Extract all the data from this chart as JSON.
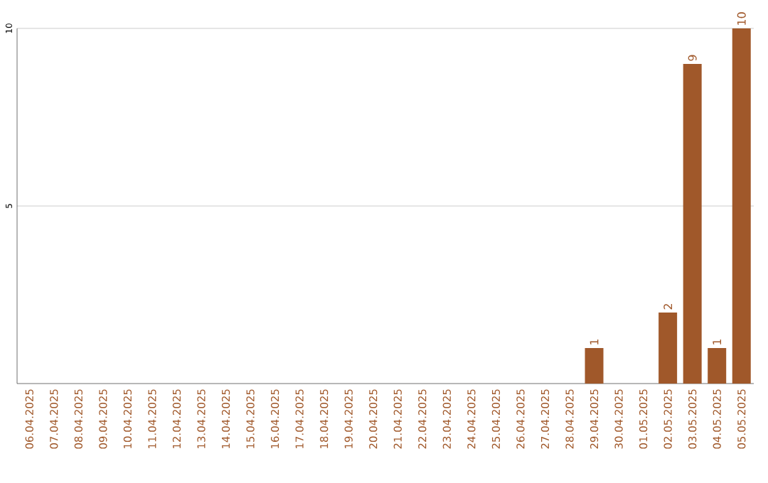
{
  "chart_data": {
    "type": "bar",
    "categories": [
      "06.04.2025",
      "07.04.2025",
      "08.04.2025",
      "09.04.2025",
      "10.04.2025",
      "11.04.2025",
      "12.04.2025",
      "13.04.2025",
      "14.04.2025",
      "15.04.2025",
      "16.04.2025",
      "17.04.2025",
      "18.04.2025",
      "19.04.2025",
      "20.04.2025",
      "21.04.2025",
      "22.04.2025",
      "23.04.2025",
      "24.04.2025",
      "25.04.2025",
      "26.04.2025",
      "27.04.2025",
      "28.04.2025",
      "29.04.2025",
      "30.04.2025",
      "01.05.2025",
      "02.05.2025",
      "03.05.2025",
      "04.05.2025",
      "05.05.2025"
    ],
    "values": [
      0,
      0,
      0,
      0,
      0,
      0,
      0,
      0,
      0,
      0,
      0,
      0,
      0,
      0,
      0,
      0,
      0,
      0,
      0,
      0,
      0,
      0,
      0,
      1,
      0,
      0,
      2,
      9,
      1,
      10
    ],
    "value_labels": [
      null,
      null,
      null,
      null,
      null,
      null,
      null,
      null,
      null,
      null,
      null,
      null,
      null,
      null,
      null,
      null,
      null,
      null,
      null,
      null,
      null,
      null,
      null,
      "1",
      null,
      null,
      "2",
      "9",
      "1",
      "10"
    ],
    "color": "#a0582a",
    "ylim": [
      0,
      10
    ],
    "yticks": [
      5,
      10
    ],
    "grid": "y"
  }
}
